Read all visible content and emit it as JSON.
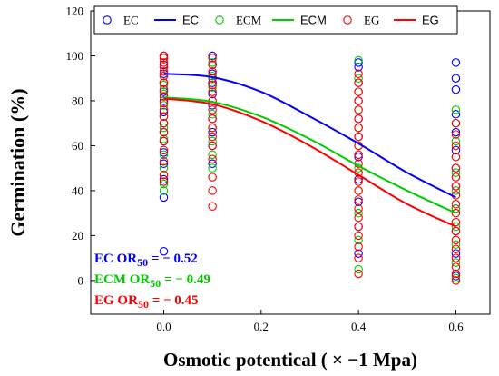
{
  "chart_data": {
    "type": "scatter",
    "title": "",
    "xlabel": "Osmotic potentical ( × −1 Mpa)",
    "ylabel": "Germination (%)",
    "xlim": [
      -0.15,
      0.67
    ],
    "ylim": [
      -15,
      120
    ],
    "x_ticks": [
      "0.0",
      "0.2",
      "0.4",
      "0.6"
    ],
    "x_tick_values": [
      0,
      0.2,
      0.4,
      0.6
    ],
    "y_ticks": [
      "0",
      "20",
      "40",
      "60",
      "80",
      "100",
      "120"
    ],
    "y_tick_values": [
      0,
      20,
      40,
      60,
      80,
      100,
      120
    ],
    "legend": {
      "placement": "top",
      "entries": [
        {
          "label": "EC",
          "kind": "marker",
          "color": "#0000ff"
        },
        {
          "label": "EC",
          "kind": "line",
          "color": "#0000ff"
        },
        {
          "label": "ECM",
          "kind": "marker",
          "color": "#00cc00"
        },
        {
          "label": "ECM",
          "kind": "line",
          "color": "#00cc00"
        },
        {
          "label": "EG",
          "kind": "marker",
          "color": "#ff0000"
        },
        {
          "label": "EG",
          "kind": "line",
          "color": "#ff0000"
        }
      ]
    },
    "series": [
      {
        "name": "EC",
        "color": "#0000ff",
        "points": [
          {
            "x": 0,
            "y": 13
          },
          {
            "x": 0,
            "y": 37
          },
          {
            "x": 0,
            "y": 45
          },
          {
            "x": 0,
            "y": 52
          },
          {
            "x": 0,
            "y": 57
          },
          {
            "x": 0,
            "y": 62
          },
          {
            "x": 0,
            "y": 66
          },
          {
            "x": 0,
            "y": 70
          },
          {
            "x": 0,
            "y": 75
          },
          {
            "x": 0,
            "y": 80
          },
          {
            "x": 0,
            "y": 84
          },
          {
            "x": 0,
            "y": 88
          },
          {
            "x": 0,
            "y": 92
          },
          {
            "x": 0,
            "y": 96
          },
          {
            "x": 0,
            "y": 100
          },
          {
            "x": 0.1,
            "y": 52
          },
          {
            "x": 0.1,
            "y": 60
          },
          {
            "x": 0.1,
            "y": 66
          },
          {
            "x": 0.1,
            "y": 72
          },
          {
            "x": 0.1,
            "y": 78
          },
          {
            "x": 0.1,
            "y": 83
          },
          {
            "x": 0.1,
            "y": 88
          },
          {
            "x": 0.1,
            "y": 92
          },
          {
            "x": 0.1,
            "y": 96
          },
          {
            "x": 0.1,
            "y": 100
          },
          {
            "x": 0.4,
            "y": 12
          },
          {
            "x": 0.4,
            "y": 24
          },
          {
            "x": 0.4,
            "y": 35
          },
          {
            "x": 0.4,
            "y": 45
          },
          {
            "x": 0.4,
            "y": 55
          },
          {
            "x": 0.4,
            "y": 64
          },
          {
            "x": 0.4,
            "y": 72
          },
          {
            "x": 0.4,
            "y": 80
          },
          {
            "x": 0.4,
            "y": 88
          },
          {
            "x": 0.4,
            "y": 95
          },
          {
            "x": 0.4,
            "y": 97
          },
          {
            "x": 0.6,
            "y": 2
          },
          {
            "x": 0.6,
            "y": 12
          },
          {
            "x": 0.6,
            "y": 22
          },
          {
            "x": 0.6,
            "y": 32
          },
          {
            "x": 0.6,
            "y": 42
          },
          {
            "x": 0.6,
            "y": 50
          },
          {
            "x": 0.6,
            "y": 58
          },
          {
            "x": 0.6,
            "y": 66
          },
          {
            "x": 0.6,
            "y": 74
          },
          {
            "x": 0.6,
            "y": 85
          },
          {
            "x": 0.6,
            "y": 90
          },
          {
            "x": 0.6,
            "y": 97
          }
        ],
        "fit": [
          {
            "x": 0,
            "y": 92
          },
          {
            "x": 0.1,
            "y": 90.5
          },
          {
            "x": 0.2,
            "y": 84
          },
          {
            "x": 0.3,
            "y": 73
          },
          {
            "x": 0.4,
            "y": 61
          },
          {
            "x": 0.5,
            "y": 48
          },
          {
            "x": 0.6,
            "y": 37
          }
        ],
        "annotation": {
          "prefix": "EC OR",
          "sub": "50",
          "suffix": " = − 0.52"
        }
      },
      {
        "name": "ECM",
        "color": "#00cc00",
        "points": [
          {
            "x": 0,
            "y": 40
          },
          {
            "x": 0,
            "y": 43
          },
          {
            "x": 0,
            "y": 50
          },
          {
            "x": 0,
            "y": 56
          },
          {
            "x": 0,
            "y": 63
          },
          {
            "x": 0,
            "y": 68
          },
          {
            "x": 0,
            "y": 73
          },
          {
            "x": 0,
            "y": 78
          },
          {
            "x": 0,
            "y": 83
          },
          {
            "x": 0,
            "y": 87
          },
          {
            "x": 0,
            "y": 91
          },
          {
            "x": 0,
            "y": 95
          },
          {
            "x": 0,
            "y": 99
          },
          {
            "x": 0.1,
            "y": 50
          },
          {
            "x": 0.1,
            "y": 56
          },
          {
            "x": 0.1,
            "y": 62
          },
          {
            "x": 0.1,
            "y": 68
          },
          {
            "x": 0.1,
            "y": 74
          },
          {
            "x": 0.1,
            "y": 80
          },
          {
            "x": 0.1,
            "y": 86
          },
          {
            "x": 0.1,
            "y": 91
          },
          {
            "x": 0.1,
            "y": 97
          },
          {
            "x": 0.4,
            "y": 5
          },
          {
            "x": 0.4,
            "y": 18
          },
          {
            "x": 0.4,
            "y": 30
          },
          {
            "x": 0.4,
            "y": 40
          },
          {
            "x": 0.4,
            "y": 50
          },
          {
            "x": 0.4,
            "y": 60
          },
          {
            "x": 0.4,
            "y": 68
          },
          {
            "x": 0.4,
            "y": 76
          },
          {
            "x": 0.4,
            "y": 84
          },
          {
            "x": 0.4,
            "y": 90
          },
          {
            "x": 0.4,
            "y": 98
          },
          {
            "x": 0.6,
            "y": 1
          },
          {
            "x": 0.6,
            "y": 8
          },
          {
            "x": 0.6,
            "y": 16
          },
          {
            "x": 0.6,
            "y": 24
          },
          {
            "x": 0.6,
            "y": 32
          },
          {
            "x": 0.6,
            "y": 40
          },
          {
            "x": 0.6,
            "y": 48
          },
          {
            "x": 0.6,
            "y": 55
          },
          {
            "x": 0.6,
            "y": 62
          },
          {
            "x": 0.6,
            "y": 70
          },
          {
            "x": 0.6,
            "y": 76
          }
        ],
        "fit": [
          {
            "x": 0,
            "y": 81.5
          },
          {
            "x": 0.1,
            "y": 79.5
          },
          {
            "x": 0.2,
            "y": 73
          },
          {
            "x": 0.3,
            "y": 63
          },
          {
            "x": 0.4,
            "y": 51
          },
          {
            "x": 0.5,
            "y": 40
          },
          {
            "x": 0.6,
            "y": 30
          }
        ],
        "annotation": {
          "prefix": "ECM OR",
          "sub": "50",
          "suffix": " = − 0.49"
        }
      },
      {
        "name": "EG",
        "color": "#ff0000",
        "points": [
          {
            "x": 0,
            "y": 44
          },
          {
            "x": 0,
            "y": 47
          },
          {
            "x": 0,
            "y": 53
          },
          {
            "x": 0,
            "y": 58
          },
          {
            "x": 0,
            "y": 62
          },
          {
            "x": 0,
            "y": 66
          },
          {
            "x": 0,
            "y": 70
          },
          {
            "x": 0,
            "y": 73
          },
          {
            "x": 0,
            "y": 76
          },
          {
            "x": 0,
            "y": 79
          },
          {
            "x": 0,
            "y": 82
          },
          {
            "x": 0,
            "y": 85
          },
          {
            "x": 0,
            "y": 88
          },
          {
            "x": 0,
            "y": 91
          },
          {
            "x": 0,
            "y": 93
          },
          {
            "x": 0,
            "y": 95
          },
          {
            "x": 0,
            "y": 97
          },
          {
            "x": 0,
            "y": 99
          },
          {
            "x": 0,
            "y": 100
          },
          {
            "x": 0.1,
            "y": 33
          },
          {
            "x": 0.1,
            "y": 40
          },
          {
            "x": 0.1,
            "y": 46
          },
          {
            "x": 0.1,
            "y": 54
          },
          {
            "x": 0.1,
            "y": 60
          },
          {
            "x": 0.1,
            "y": 64
          },
          {
            "x": 0.1,
            "y": 68
          },
          {
            "x": 0.1,
            "y": 72
          },
          {
            "x": 0.1,
            "y": 76
          },
          {
            "x": 0.1,
            "y": 80
          },
          {
            "x": 0.1,
            "y": 84
          },
          {
            "x": 0.1,
            "y": 87
          },
          {
            "x": 0.1,
            "y": 90
          },
          {
            "x": 0.1,
            "y": 93
          },
          {
            "x": 0.1,
            "y": 96
          },
          {
            "x": 0.1,
            "y": 99
          },
          {
            "x": 0.4,
            "y": 3
          },
          {
            "x": 0.4,
            "y": 10
          },
          {
            "x": 0.4,
            "y": 15
          },
          {
            "x": 0.4,
            "y": 20
          },
          {
            "x": 0.4,
            "y": 24
          },
          {
            "x": 0.4,
            "y": 28
          },
          {
            "x": 0.4,
            "y": 32
          },
          {
            "x": 0.4,
            "y": 36
          },
          {
            "x": 0.4,
            "y": 40
          },
          {
            "x": 0.4,
            "y": 44
          },
          {
            "x": 0.4,
            "y": 48
          },
          {
            "x": 0.4,
            "y": 52
          },
          {
            "x": 0.4,
            "y": 56
          },
          {
            "x": 0.4,
            "y": 60
          },
          {
            "x": 0.4,
            "y": 64
          },
          {
            "x": 0.4,
            "y": 68
          },
          {
            "x": 0.4,
            "y": 72
          },
          {
            "x": 0.4,
            "y": 76
          },
          {
            "x": 0.4,
            "y": 80
          },
          {
            "x": 0.4,
            "y": 84
          },
          {
            "x": 0.4,
            "y": 88
          },
          {
            "x": 0.4,
            "y": 92
          },
          {
            "x": 0.6,
            "y": 0
          },
          {
            "x": 0.6,
            "y": 3
          },
          {
            "x": 0.6,
            "y": 6
          },
          {
            "x": 0.6,
            "y": 10
          },
          {
            "x": 0.6,
            "y": 14
          },
          {
            "x": 0.6,
            "y": 18
          },
          {
            "x": 0.6,
            "y": 22
          },
          {
            "x": 0.6,
            "y": 26
          },
          {
            "x": 0.6,
            "y": 30
          },
          {
            "x": 0.6,
            "y": 34
          },
          {
            "x": 0.6,
            "y": 38
          },
          {
            "x": 0.6,
            "y": 42
          },
          {
            "x": 0.6,
            "y": 46
          },
          {
            "x": 0.6,
            "y": 50
          },
          {
            "x": 0.6,
            "y": 55
          },
          {
            "x": 0.6,
            "y": 60
          },
          {
            "x": 0.6,
            "y": 65
          },
          {
            "x": 0.6,
            "y": 70
          }
        ],
        "fit": [
          {
            "x": 0,
            "y": 81
          },
          {
            "x": 0.1,
            "y": 78.5
          },
          {
            "x": 0.2,
            "y": 71
          },
          {
            "x": 0.3,
            "y": 60
          },
          {
            "x": 0.4,
            "y": 47
          },
          {
            "x": 0.5,
            "y": 34
          },
          {
            "x": 0.6,
            "y": 24
          }
        ],
        "annotation": {
          "prefix": "EG OR",
          "sub": "50",
          "suffix": " = − 0.45"
        }
      }
    ]
  }
}
